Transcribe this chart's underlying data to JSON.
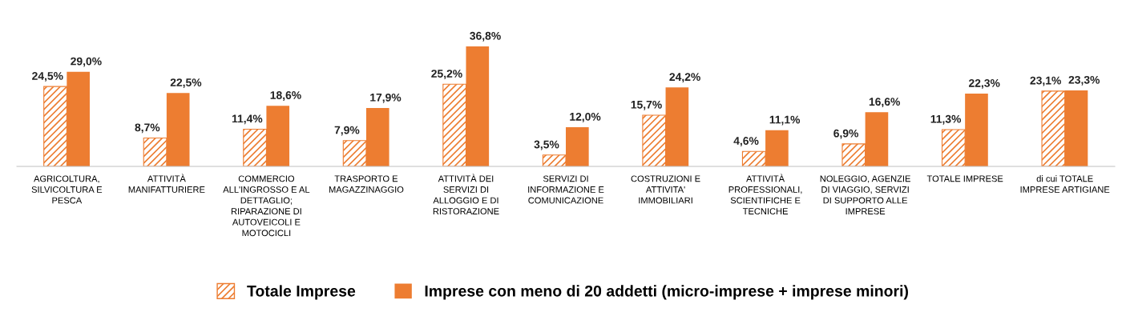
{
  "chart_data": {
    "type": "bar",
    "categories": [
      "AGRICOLTURA,\nSILVICOLTURA E\nPESCA",
      "ATTIVITÀ\nMANIFATTURIERE",
      "COMMERCIO\nALL'INGROSSO E AL\nDETTAGLIO;\nRIPARAZIONE DI\nAUTOVEICOLI E\nMOTOCICLI",
      "TRASPORTO E\nMAGAZZINAGGIO",
      "ATTIVITÀ DEI\nSERVIZI DI\nALLOGGIO E DI\nRISTORAZIONE",
      "SERVIZI DI\nINFORMAZIONE E\nCOMUNICAZIONE",
      "COSTRUZIONI E\nATTIVITA'\nIMMOBILIARI",
      "ATTIVITÀ\nPROFESSIONALI,\nSCIENTIFICHE E\nTECNICHE",
      "NOLEGGIO, AGENZIE\nDI VIAGGIO, SERVIZI\nDI SUPPORTO ALLE\nIMPRESE",
      "TOTALE IMPRESE",
      "di cui TOTALE\nIMPRESE ARTIGIANE"
    ],
    "series": [
      {
        "name": "Totale Imprese",
        "color": "#ed7d31",
        "values": [
          24.5,
          8.7,
          11.4,
          7.9,
          25.2,
          3.5,
          15.7,
          4.6,
          6.9,
          11.3,
          23.1
        ],
        "value_labels": [
          "24,5%",
          "8,7%",
          "11,4%",
          "7,9%",
          "25,2%",
          "3,5%",
          "15,7%",
          "4,6%",
          "6,9%",
          "11,3%",
          "23,1%"
        ]
      },
      {
        "name": "Imprese con meno di 20 addetti (micro-imprese + imprese minori)",
        "color": "#ed7d31",
        "values": [
          29.0,
          22.5,
          18.6,
          17.9,
          36.8,
          12.0,
          24.2,
          11.1,
          16.6,
          22.3,
          23.3
        ],
        "value_labels": [
          "29,0%",
          "22,5%",
          "18,6%",
          "17,9%",
          "36,8%",
          "12,0%",
          "24,2%",
          "11,1%",
          "16,6%",
          "22,3%",
          "23,3%"
        ]
      }
    ],
    "legend": "bottom",
    "grid": false
  }
}
